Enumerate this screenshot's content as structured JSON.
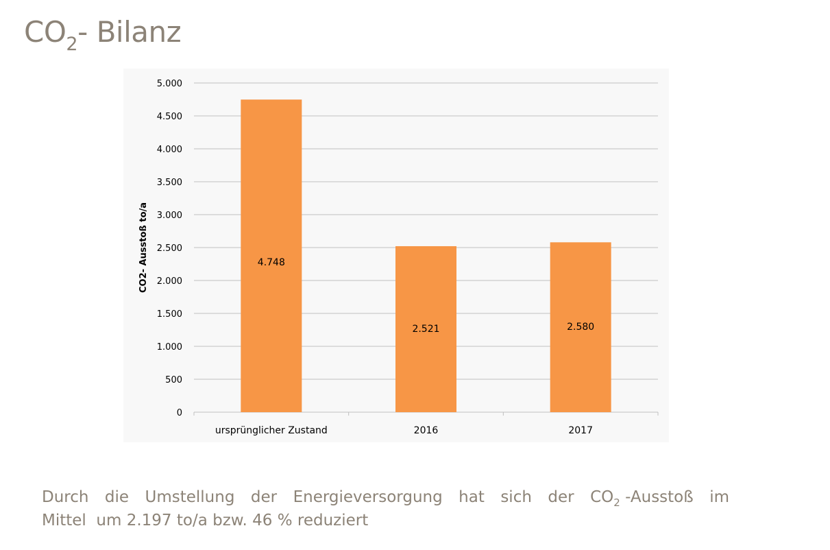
{
  "title": {
    "main": "CO",
    "subscript": "2",
    "rest": "- Bilanz"
  },
  "colors": {
    "bar": "#f79646",
    "text_muted": "#8c8377",
    "grid": "#bfbfbf",
    "panel_bg": "#f8f8f8"
  },
  "chart_data": {
    "type": "bar",
    "categories": [
      "ursprünglicher Zustand",
      "2016",
      "2017"
    ],
    "values": [
      4748,
      2521,
      2580
    ],
    "data_labels": [
      "4.748",
      "2.521",
      "2.580"
    ],
    "ylabel": "CO2- Ausstoß to/a",
    "xlabel": "",
    "ylim": [
      0,
      5000
    ],
    "yticks": [
      0,
      500,
      1000,
      1500,
      2000,
      2500,
      3000,
      3500,
      4000,
      4500,
      5000
    ],
    "ytick_labels": [
      "0",
      "500",
      "1.000",
      "1.500",
      "2.000",
      "2.500",
      "3.000",
      "3.500",
      "4.000",
      "4.500",
      "5.000"
    ],
    "grid": true,
    "legend": "none"
  },
  "caption": {
    "line1_words": [
      "Durch",
      "die",
      "Umstellung",
      "der",
      "Energieversorgung",
      "hat",
      "sich",
      "der"
    ],
    "co2_main": "CO",
    "co2_sub": "2",
    "line1_after": "-Ausstoß",
    "line1_end": "im",
    "line2": "Mittel  um 2.197 to/a bzw. 46 % reduziert"
  }
}
